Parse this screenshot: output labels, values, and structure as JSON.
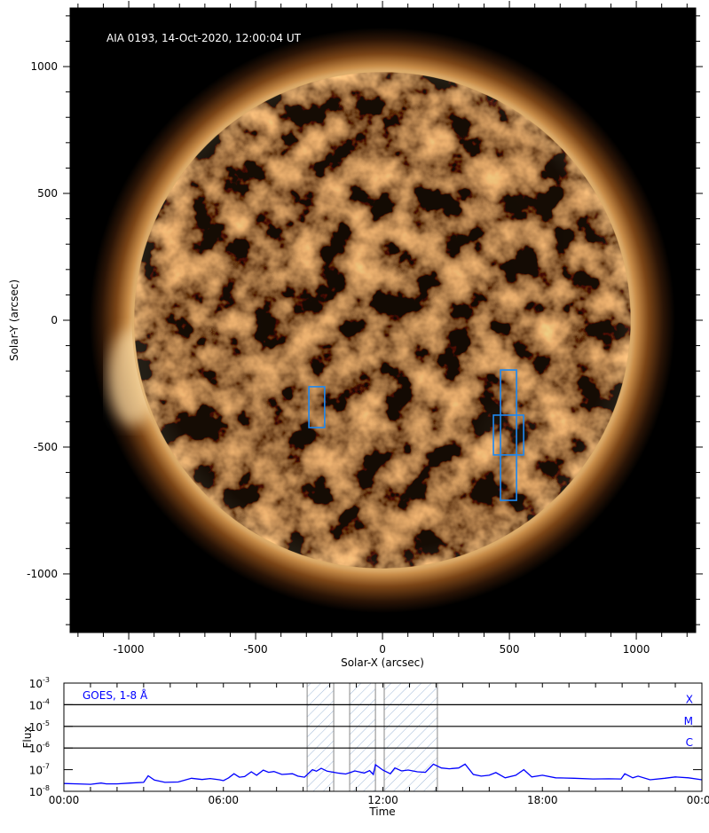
{
  "chart_data": [
    {
      "type": "heatmap",
      "annotation": "AIA 0193, 14-Oct-2020, 12:00:04 UT",
      "xlabel": "Solar-X (arcsec)",
      "ylabel": "Solar-Y (arcsec)",
      "xlim": [
        -1231,
        1234
      ],
      "ylim": [
        -1231,
        1231
      ],
      "x_ticks": [
        -1000,
        -500,
        0,
        500,
        1000
      ],
      "y_ticks": [
        -1000,
        -500,
        0,
        500,
        1000
      ],
      "minor_tick_step": 100,
      "colormap": "sdoaia193",
      "box_color": "#1e88f0",
      "boxes": [
        {
          "x": [
            -290,
            -228
          ],
          "y": [
            -262,
            -423
          ]
        },
        {
          "x": [
            465,
            528
          ],
          "y": [
            -196,
            -710
          ]
        },
        {
          "x": [
            437,
            556
          ],
          "y": [
            -374,
            -531
          ]
        }
      ]
    },
    {
      "type": "line",
      "legend": "GOES, 1-8 Å",
      "xlabel": "Time",
      "ylabel": "Flux",
      "xlim": [
        0,
        24
      ],
      "ylim": [
        1e-08,
        0.001
      ],
      "yscale": "log",
      "x_ticks": [
        {
          "h": 0,
          "label": "00:00"
        },
        {
          "h": 6,
          "label": "06:00"
        },
        {
          "h": 12,
          "label": "12:00"
        },
        {
          "h": 18,
          "label": "18:00"
        },
        {
          "h": 24,
          "label": "00:00"
        }
      ],
      "y_ticks": [
        {
          "exp": -3,
          "base": "10",
          "sup": "-3"
        },
        {
          "exp": -4,
          "base": "10",
          "sup": "-4"
        },
        {
          "exp": -5,
          "base": "10",
          "sup": "-5"
        },
        {
          "exp": -6,
          "base": "10",
          "sup": "-6"
        },
        {
          "exp": -7,
          "base": "10",
          "sup": "-7"
        },
        {
          "exp": -8,
          "base": "10",
          "sup": "-8"
        }
      ],
      "class_levels": [
        {
          "label": "X",
          "flux": 0.0001
        },
        {
          "label": "M",
          "flux": 1e-05
        },
        {
          "label": "C",
          "flux": 1e-06
        }
      ],
      "shaded_intervals": [
        [
          "09:09",
          "10:09"
        ],
        [
          "10:45",
          "11:43"
        ],
        [
          "12:03",
          "14:05"
        ]
      ],
      "shaded_intervals_h": [
        [
          9.15,
          10.15
        ],
        [
          10.75,
          11.72
        ],
        [
          12.05,
          14.05
        ]
      ],
      "series_color": "#0000ff",
      "series": [
        {
          "name": "GOES, 1-8 Å",
          "points": [
            [
              0,
              2.3e-08
            ],
            [
              0.5,
              2.2e-08
            ],
            [
              1.0,
              2.1e-08
            ],
            [
              1.4,
              2.4e-08
            ],
            [
              1.6,
              2.2e-08
            ],
            [
              2.0,
              2.2e-08
            ],
            [
              2.5,
              2.4e-08
            ],
            [
              3.0,
              2.6e-08
            ],
            [
              3.17,
              5.2e-08
            ],
            [
              3.4,
              3.3e-08
            ],
            [
              3.8,
              2.6e-08
            ],
            [
              4.3,
              2.7e-08
            ],
            [
              4.8,
              4e-08
            ],
            [
              5.2,
              3.5e-08
            ],
            [
              5.5,
              3.9e-08
            ],
            [
              5.85,
              3.4e-08
            ],
            [
              6.0,
              3.1e-08
            ],
            [
              6.2,
              4.2e-08
            ],
            [
              6.4,
              6.5e-08
            ],
            [
              6.6,
              4.5e-08
            ],
            [
              6.8,
              4.8e-08
            ],
            [
              7.05,
              8e-08
            ],
            [
              7.25,
              5.5e-08
            ],
            [
              7.5,
              9.5e-08
            ],
            [
              7.7,
              7.5e-08
            ],
            [
              7.9,
              8.2e-08
            ],
            [
              8.2,
              6e-08
            ],
            [
              8.6,
              6.5e-08
            ],
            [
              8.8,
              5e-08
            ],
            [
              9.05,
              4.5e-08
            ],
            [
              9.35,
              1e-07
            ],
            [
              9.5,
              8.5e-08
            ],
            [
              9.68,
              1.15e-07
            ],
            [
              9.9,
              8.5e-08
            ],
            [
              10.3,
              7e-08
            ],
            [
              10.6,
              6.3e-08
            ],
            [
              10.95,
              8.8e-08
            ],
            [
              11.3,
              7e-08
            ],
            [
              11.5,
              9e-08
            ],
            [
              11.64,
              6e-08
            ],
            [
              11.72,
              1.7e-07
            ],
            [
              12.0,
              9.5e-08
            ],
            [
              12.28,
              6.5e-08
            ],
            [
              12.45,
              1.2e-07
            ],
            [
              12.7,
              8.8e-08
            ],
            [
              12.95,
              9.6e-08
            ],
            [
              13.3,
              8e-08
            ],
            [
              13.6,
              7.5e-08
            ],
            [
              13.9,
              1.8e-07
            ],
            [
              14.2,
              1.2e-07
            ],
            [
              14.5,
              1.1e-07
            ],
            [
              14.85,
              1.2e-07
            ],
            [
              15.09,
              1.8e-07
            ],
            [
              15.4,
              6e-08
            ],
            [
              15.7,
              5e-08
            ],
            [
              16.0,
              5.5e-08
            ],
            [
              16.25,
              7.3e-08
            ],
            [
              16.6,
              4.2e-08
            ],
            [
              17.0,
              5.5e-08
            ],
            [
              17.3,
              1e-07
            ],
            [
              17.6,
              4.6e-08
            ],
            [
              18.0,
              5.5e-08
            ],
            [
              18.5,
              4.2e-08
            ],
            [
              19.2,
              4e-08
            ],
            [
              19.9,
              3.7e-08
            ],
            [
              20.5,
              3.8e-08
            ],
            [
              20.96,
              3.7e-08
            ],
            [
              21.1,
              6.5e-08
            ],
            [
              21.4,
              4.2e-08
            ],
            [
              21.6,
              5e-08
            ],
            [
              22.05,
              3.4e-08
            ],
            [
              22.6,
              4e-08
            ],
            [
              23.0,
              4.6e-08
            ],
            [
              23.5,
              4.2e-08
            ],
            [
              24.0,
              3.4e-08
            ]
          ]
        }
      ]
    }
  ]
}
